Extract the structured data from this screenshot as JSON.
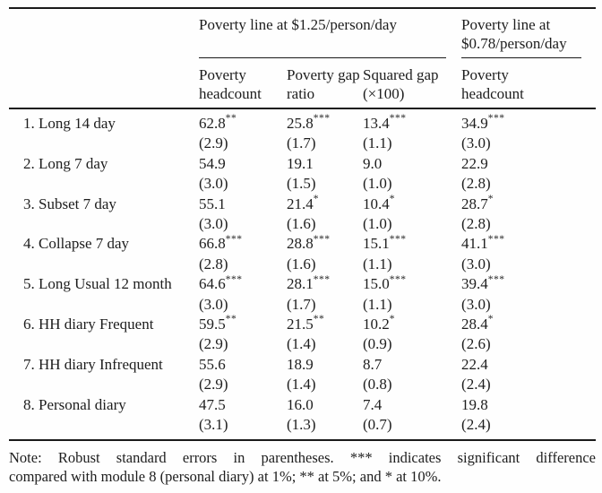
{
  "table": {
    "col_groups": [
      {
        "label": "Poverty line at $1.25/person/day"
      },
      {
        "label": "Poverty line at $0.78/person/day"
      }
    ],
    "columns": [
      "Poverty headcount",
      "Poverty gap ratio",
      "Squared gap (×100)",
      "Poverty headcount"
    ],
    "rows": [
      {
        "label": "1. Long 14 day",
        "cells": [
          {
            "v": "62.8",
            "s": "**",
            "se": "(2.9)"
          },
          {
            "v": "25.8",
            "s": "***",
            "se": "(1.7)"
          },
          {
            "v": "13.4",
            "s": "***",
            "se": "(1.1)"
          },
          {
            "v": "34.9",
            "s": "***",
            "se": "(3.0)"
          }
        ]
      },
      {
        "label": "2. Long 7 day",
        "cells": [
          {
            "v": "54.9",
            "s": "",
            "se": "(3.0)"
          },
          {
            "v": "19.1",
            "s": "",
            "se": "(1.5)"
          },
          {
            "v": "9.0",
            "s": "",
            "se": "(1.0)"
          },
          {
            "v": "22.9",
            "s": "",
            "se": "(2.8)"
          }
        ]
      },
      {
        "label": "3. Subset 7 day",
        "cells": [
          {
            "v": "55.1",
            "s": "",
            "se": "(3.0)"
          },
          {
            "v": "21.4",
            "s": "*",
            "se": "(1.6)"
          },
          {
            "v": "10.4",
            "s": "*",
            "se": "(1.0)"
          },
          {
            "v": "28.7",
            "s": "*",
            "se": "(2.8)"
          }
        ]
      },
      {
        "label": "4. Collapse 7 day",
        "cells": [
          {
            "v": "66.8",
            "s": "***",
            "se": "(2.8)"
          },
          {
            "v": "28.8",
            "s": "***",
            "se": "(1.6)"
          },
          {
            "v": "15.1",
            "s": "***",
            "se": "(1.1)"
          },
          {
            "v": "41.1",
            "s": "***",
            "se": "(3.0)"
          }
        ]
      },
      {
        "label": "5. Long Usual 12 month",
        "cells": [
          {
            "v": "64.6",
            "s": "***",
            "se": "(3.0)"
          },
          {
            "v": "28.1",
            "s": "***",
            "se": "(1.7)"
          },
          {
            "v": "15.0",
            "s": "***",
            "se": "(1.1)"
          },
          {
            "v": "39.4",
            "s": "***",
            "se": "(3.0)"
          }
        ]
      },
      {
        "label": "6. HH diary Frequent",
        "cells": [
          {
            "v": "59.5",
            "s": "**",
            "se": "(2.9)"
          },
          {
            "v": "21.5",
            "s": "**",
            "se": "(1.4)"
          },
          {
            "v": "10.2",
            "s": "*",
            "se": "(0.9)"
          },
          {
            "v": "28.4",
            "s": "*",
            "se": "(2.6)"
          }
        ]
      },
      {
        "label": "7. HH diary Infrequent",
        "cells": [
          {
            "v": "55.6",
            "s": "",
            "se": "(2.9)"
          },
          {
            "v": "18.9",
            "s": "",
            "se": "(1.4)"
          },
          {
            "v": "8.7",
            "s": "",
            "se": "(0.8)"
          },
          {
            "v": "22.4",
            "s": "",
            "se": "(2.4)"
          }
        ]
      },
      {
        "label": "8. Personal diary",
        "cells": [
          {
            "v": "47.5",
            "s": "",
            "se": "(3.1)"
          },
          {
            "v": "16.0",
            "s": "",
            "se": "(1.3)"
          },
          {
            "v": "7.4",
            "s": "",
            "se": "(0.7)"
          },
          {
            "v": "19.8",
            "s": "",
            "se": "(2.4)"
          }
        ]
      }
    ]
  },
  "note": {
    "line1": "Note: Robust standard errors in parentheses. *** indicates significant difference",
    "line2": "compared with module 8 (personal diary) at 1%; ** at 5%; and * at 10%."
  },
  "colors": {
    "text": "#1d1d1d",
    "rule": "#1a1a1a",
    "background": "#fefefe"
  }
}
